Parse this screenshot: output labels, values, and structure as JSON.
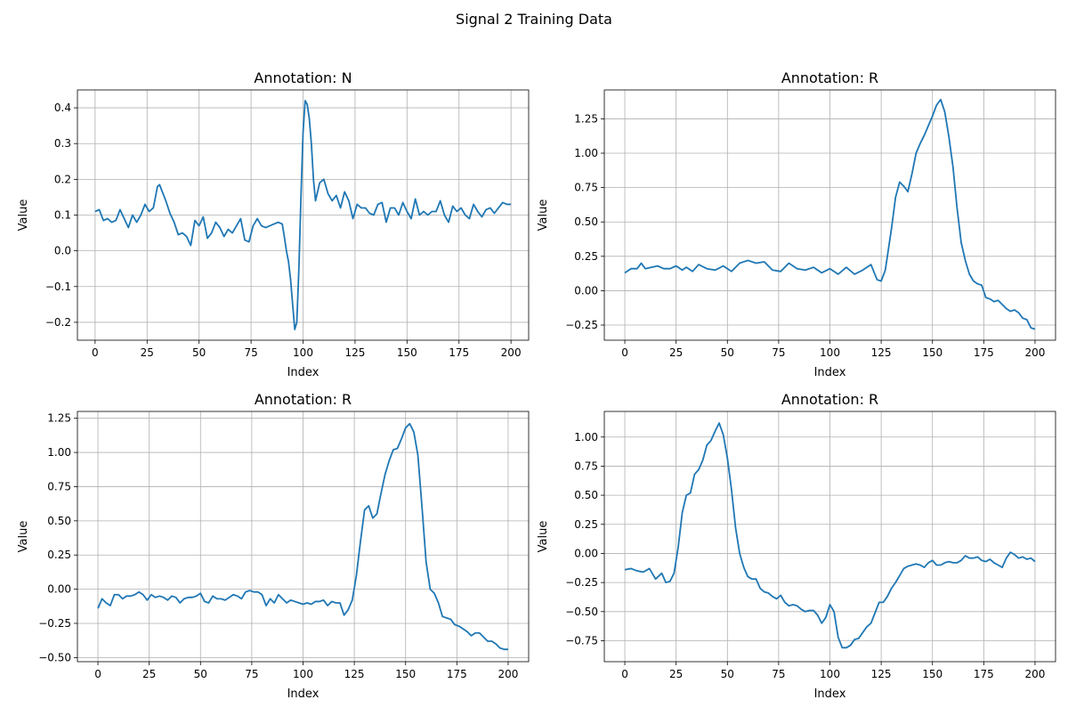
{
  "figure": {
    "title": "Signal 2 Training Data"
  },
  "chart_data": [
    {
      "type": "line",
      "title": "Annotation: N",
      "xlabel": "Index",
      "ylabel": "Value",
      "xlim": [
        -8.5,
        208.5
      ],
      "ylim": [
        -0.25,
        0.45
      ],
      "xticks": [
        0,
        25,
        50,
        75,
        100,
        125,
        150,
        175,
        200
      ],
      "yticks": [
        -0.2,
        -0.1,
        0.0,
        0.1,
        0.2,
        0.3,
        0.4
      ],
      "ytick_labels": [
        "−0.2",
        "−0.1",
        "0.0",
        "0.1",
        "0.2",
        "0.3",
        "0.4"
      ],
      "grid": true,
      "color": "#1f77b4",
      "series": [
        {
          "x": [
            0,
            2,
            4,
            6,
            8,
            10,
            12,
            14,
            16,
            18,
            20,
            22,
            24,
            26,
            28,
            30,
            31,
            32,
            34,
            36,
            38,
            40,
            42,
            44,
            46,
            48,
            50,
            52,
            54,
            56,
            58,
            60,
            62,
            64,
            66,
            68,
            70,
            72,
            74,
            76,
            78,
            80,
            82,
            84,
            86,
            88,
            90,
            91,
            92,
            93,
            94,
            95,
            96,
            97,
            98,
            99,
            100,
            101,
            102,
            103,
            104,
            105,
            106,
            108,
            110,
            112,
            114,
            116,
            118,
            120,
            122,
            124,
            126,
            128,
            130,
            132,
            134,
            136,
            138,
            140,
            142,
            144,
            146,
            148,
            150,
            152,
            154,
            156,
            158,
            160,
            162,
            164,
            166,
            168,
            170,
            172,
            174,
            176,
            178,
            180,
            182,
            184,
            186,
            188,
            190,
            192,
            194,
            196,
            198,
            200
          ],
          "y": [
            0.11,
            0.115,
            0.085,
            0.09,
            0.08,
            0.085,
            0.115,
            0.09,
            0.065,
            0.1,
            0.08,
            0.1,
            0.13,
            0.11,
            0.12,
            0.18,
            0.185,
            0.17,
            0.14,
            0.105,
            0.08,
            0.045,
            0.05,
            0.04,
            0.015,
            0.085,
            0.07,
            0.095,
            0.035,
            0.05,
            0.08,
            0.065,
            0.04,
            0.06,
            0.05,
            0.07,
            0.09,
            0.03,
            0.025,
            0.07,
            0.09,
            0.07,
            0.065,
            0.07,
            0.075,
            0.08,
            0.075,
            0.04,
            0.0,
            -0.03,
            -0.08,
            -0.15,
            -0.22,
            -0.2,
            -0.05,
            0.15,
            0.33,
            0.42,
            0.41,
            0.37,
            0.3,
            0.2,
            0.14,
            0.19,
            0.2,
            0.16,
            0.14,
            0.155,
            0.12,
            0.165,
            0.14,
            0.09,
            0.13,
            0.12,
            0.12,
            0.105,
            0.1,
            0.13,
            0.135,
            0.08,
            0.12,
            0.12,
            0.1,
            0.135,
            0.11,
            0.09,
            0.145,
            0.1,
            0.11,
            0.1,
            0.11,
            0.11,
            0.14,
            0.1,
            0.08,
            0.125,
            0.11,
            0.12,
            0.1,
            0.09,
            0.13,
            0.11,
            0.095,
            0.115,
            0.12,
            0.105,
            0.12,
            0.135,
            0.13,
            0.13
          ]
        }
      ]
    },
    {
      "type": "line",
      "title": "Annotation: R",
      "xlabel": "Index",
      "ylabel": "Value",
      "xlim": [
        -10,
        210
      ],
      "ylim": [
        -0.36,
        1.46
      ],
      "xticks": [
        0,
        25,
        50,
        75,
        100,
        125,
        150,
        175,
        200
      ],
      "yticks": [
        -0.25,
        0.0,
        0.25,
        0.5,
        0.75,
        1.0,
        1.25
      ],
      "ytick_labels": [
        "−0.25",
        "0.00",
        "0.25",
        "0.50",
        "0.75",
        "1.00",
        "1.25"
      ],
      "grid": true,
      "color": "#1f77b4",
      "series": [
        {
          "x": [
            0,
            3,
            6,
            8,
            10,
            13,
            16,
            19,
            22,
            25,
            28,
            30,
            33,
            36,
            40,
            44,
            48,
            52,
            56,
            60,
            64,
            68,
            72,
            76,
            80,
            84,
            88,
            92,
            96,
            100,
            104,
            108,
            112,
            116,
            120,
            123,
            125,
            127,
            130,
            132,
            134,
            136,
            138,
            140,
            142,
            144,
            146,
            148,
            150,
            152,
            154,
            156,
            158,
            160,
            162,
            164,
            166,
            168,
            170,
            172,
            174,
            176,
            178,
            180,
            182,
            184,
            186,
            188,
            190,
            192,
            194,
            196,
            198,
            200
          ],
          "y": [
            0.13,
            0.16,
            0.16,
            0.2,
            0.16,
            0.17,
            0.18,
            0.16,
            0.16,
            0.18,
            0.15,
            0.17,
            0.14,
            0.19,
            0.16,
            0.15,
            0.18,
            0.14,
            0.2,
            0.22,
            0.2,
            0.21,
            0.15,
            0.14,
            0.2,
            0.16,
            0.15,
            0.17,
            0.13,
            0.16,
            0.12,
            0.17,
            0.12,
            0.15,
            0.19,
            0.08,
            0.07,
            0.15,
            0.45,
            0.68,
            0.79,
            0.76,
            0.72,
            0.85,
            1.0,
            1.07,
            1.13,
            1.2,
            1.27,
            1.35,
            1.39,
            1.3,
            1.12,
            0.9,
            0.6,
            0.35,
            0.22,
            0.12,
            0.07,
            0.05,
            0.04,
            -0.05,
            -0.06,
            -0.08,
            -0.07,
            -0.1,
            -0.13,
            -0.15,
            -0.14,
            -0.16,
            -0.2,
            -0.21,
            -0.27,
            -0.28
          ]
        }
      ]
    },
    {
      "type": "line",
      "title": "Annotation: R",
      "xlabel": "Index",
      "ylabel": "Value",
      "xlim": [
        -10,
        210
      ],
      "ylim": [
        -0.53,
        1.3
      ],
      "xticks": [
        0,
        25,
        50,
        75,
        100,
        125,
        150,
        175,
        200
      ],
      "yticks": [
        -0.5,
        -0.25,
        0.0,
        0.25,
        0.5,
        0.75,
        1.0,
        1.25
      ],
      "ytick_labels": [
        "−0.50",
        "−0.25",
        "0.00",
        "0.25",
        "0.50",
        "0.75",
        "1.00",
        "1.25"
      ],
      "grid": true,
      "color": "#1f77b4",
      "series": [
        {
          "x": [
            0,
            2,
            4,
            6,
            8,
            10,
            12,
            14,
            16,
            18,
            20,
            22,
            24,
            26,
            28,
            30,
            32,
            34,
            36,
            38,
            40,
            42,
            44,
            46,
            48,
            50,
            52,
            54,
            56,
            58,
            60,
            62,
            64,
            66,
            68,
            70,
            72,
            74,
            76,
            78,
            80,
            82,
            84,
            86,
            88,
            90,
            92,
            94,
            96,
            98,
            100,
            102,
            104,
            106,
            108,
            110,
            112,
            114,
            116,
            118,
            120,
            122,
            124,
            126,
            128,
            130,
            132,
            134,
            136,
            138,
            140,
            142,
            144,
            146,
            148,
            150,
            152,
            154,
            156,
            158,
            160,
            162,
            164,
            166,
            168,
            170,
            172,
            174,
            176,
            178,
            180,
            182,
            184,
            186,
            188,
            190,
            192,
            194,
            196,
            198,
            200
          ],
          "y": [
            -0.14,
            -0.07,
            -0.1,
            -0.12,
            -0.04,
            -0.04,
            -0.07,
            -0.05,
            -0.05,
            -0.04,
            -0.02,
            -0.04,
            -0.08,
            -0.04,
            -0.06,
            -0.05,
            -0.06,
            -0.08,
            -0.05,
            -0.06,
            -0.1,
            -0.07,
            -0.06,
            -0.06,
            -0.05,
            -0.03,
            -0.09,
            -0.1,
            -0.05,
            -0.07,
            -0.07,
            -0.08,
            -0.06,
            -0.04,
            -0.05,
            -0.07,
            -0.02,
            -0.01,
            -0.02,
            -0.02,
            -0.04,
            -0.12,
            -0.07,
            -0.1,
            -0.04,
            -0.07,
            -0.1,
            -0.08,
            -0.09,
            -0.1,
            -0.11,
            -0.1,
            -0.11,
            -0.09,
            -0.09,
            -0.08,
            -0.12,
            -0.09,
            -0.1,
            -0.1,
            -0.19,
            -0.15,
            -0.08,
            0.1,
            0.35,
            0.58,
            0.61,
            0.52,
            0.55,
            0.7,
            0.84,
            0.94,
            1.02,
            1.03,
            1.1,
            1.18,
            1.21,
            1.15,
            0.98,
            0.6,
            0.2,
            0.0,
            -0.03,
            -0.1,
            -0.2,
            -0.21,
            -0.22,
            -0.26,
            -0.27,
            -0.29,
            -0.31,
            -0.34,
            -0.32,
            -0.32,
            -0.35,
            -0.38,
            -0.38,
            -0.4,
            -0.43,
            -0.44,
            -0.44
          ]
        }
      ]
    },
    {
      "type": "line",
      "title": "Annotation: R",
      "xlabel": "Index",
      "ylabel": "Value",
      "xlim": [
        -10,
        210
      ],
      "ylim": [
        -0.93,
        1.22
      ],
      "xticks": [
        0,
        25,
        50,
        75,
        100,
        125,
        150,
        175,
        200
      ],
      "yticks": [
        -0.75,
        -0.5,
        -0.25,
        0.0,
        0.25,
        0.5,
        0.75,
        1.0
      ],
      "ytick_labels": [
        "−0.75",
        "−0.50",
        "−0.25",
        "0.00",
        "0.25",
        "0.50",
        "0.75",
        "1.00"
      ],
      "grid": true,
      "color": "#1f77b4",
      "series": [
        {
          "x": [
            0,
            3,
            6,
            9,
            12,
            15,
            18,
            20,
            22,
            24,
            26,
            28,
            30,
            32,
            34,
            36,
            38,
            40,
            42,
            44,
            46,
            48,
            50,
            52,
            54,
            56,
            58,
            60,
            62,
            64,
            66,
            68,
            70,
            72,
            74,
            76,
            78,
            80,
            82,
            84,
            86,
            88,
            90,
            92,
            94,
            96,
            98,
            100,
            102,
            104,
            106,
            108,
            110,
            112,
            114,
            116,
            118,
            120,
            122,
            124,
            126,
            128,
            130,
            132,
            134,
            136,
            138,
            140,
            142,
            144,
            146,
            148,
            150,
            152,
            154,
            156,
            158,
            160,
            162,
            164,
            166,
            168,
            170,
            172,
            174,
            176,
            178,
            180,
            182,
            184,
            186,
            188,
            190,
            192,
            194,
            196,
            198,
            200
          ],
          "y": [
            -0.14,
            -0.13,
            -0.15,
            -0.16,
            -0.13,
            -0.22,
            -0.17,
            -0.25,
            -0.24,
            -0.17,
            0.05,
            0.35,
            0.5,
            0.52,
            0.68,
            0.72,
            0.8,
            0.93,
            0.97,
            1.05,
            1.12,
            1.02,
            0.82,
            0.55,
            0.22,
            0.0,
            -0.12,
            -0.2,
            -0.22,
            -0.22,
            -0.3,
            -0.33,
            -0.34,
            -0.37,
            -0.39,
            -0.36,
            -0.42,
            -0.45,
            -0.44,
            -0.45,
            -0.48,
            -0.5,
            -0.49,
            -0.49,
            -0.53,
            -0.6,
            -0.55,
            -0.44,
            -0.5,
            -0.72,
            -0.81,
            -0.81,
            -0.79,
            -0.74,
            -0.73,
            -0.68,
            -0.63,
            -0.6,
            -0.51,
            -0.42,
            -0.42,
            -0.37,
            -0.3,
            -0.25,
            -0.19,
            -0.13,
            -0.11,
            -0.1,
            -0.09,
            -0.1,
            -0.12,
            -0.08,
            -0.06,
            -0.1,
            -0.1,
            -0.08,
            -0.07,
            -0.08,
            -0.08,
            -0.06,
            -0.02,
            -0.04,
            -0.04,
            -0.03,
            -0.06,
            -0.07,
            -0.05,
            -0.08,
            -0.1,
            -0.12,
            -0.04,
            0.01,
            -0.01,
            -0.04,
            -0.03,
            -0.05,
            -0.04,
            -0.07
          ]
        }
      ]
    }
  ]
}
